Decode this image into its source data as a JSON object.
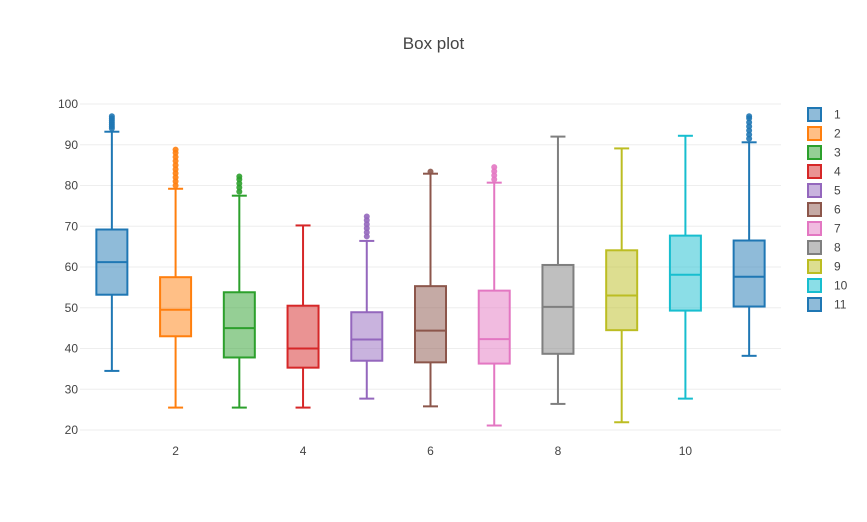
{
  "chart_data": {
    "type": "box",
    "title": "Box plot",
    "xlabel": "",
    "ylabel": "",
    "ylim": [
      20,
      100
    ],
    "y_ticks": [
      20,
      30,
      40,
      50,
      60,
      70,
      80,
      90,
      100
    ],
    "x_ticks": [
      2,
      4,
      6,
      8,
      10
    ],
    "xlim": [
      0.5,
      11.5
    ],
    "grid": "horizontal",
    "legend_position": "right",
    "series": [
      {
        "name": "1",
        "x": 1,
        "color": "#1f77b4",
        "min": 34.5,
        "q1": 53.2,
        "median": 61.2,
        "q3": 69.2,
        "max": 93.2,
        "outliers": [
          94,
          94.5,
          95,
          95.5,
          96,
          96.5,
          97
        ]
      },
      {
        "name": "2",
        "x": 2,
        "color": "#ff7f0e",
        "min": 25.5,
        "q1": 43.0,
        "median": 49.5,
        "q3": 57.5,
        "max": 79.2,
        "outliers": [
          80,
          81,
          82,
          83,
          84,
          85,
          86,
          87,
          88,
          88.8
        ]
      },
      {
        "name": "3",
        "x": 3,
        "color": "#2ca02c",
        "min": 25.5,
        "q1": 37.8,
        "median": 45.0,
        "q3": 53.8,
        "max": 77.5,
        "outliers": [
          78.5,
          79.5,
          80.5,
          81.5,
          82.2
        ]
      },
      {
        "name": "4",
        "x": 4,
        "color": "#d62728",
        "min": 25.5,
        "q1": 35.3,
        "median": 40.0,
        "q3": 50.5,
        "max": 70.2,
        "outliers": []
      },
      {
        "name": "5",
        "x": 5,
        "color": "#9467bd",
        "min": 27.7,
        "q1": 37.0,
        "median": 42.2,
        "q3": 48.9,
        "max": 66.4,
        "outliers": [
          67.5,
          68.5,
          69.5,
          70.5,
          71.5,
          72.4
        ]
      },
      {
        "name": "6",
        "x": 6,
        "color": "#8c564b",
        "min": 25.8,
        "q1": 36.6,
        "median": 44.4,
        "q3": 55.3,
        "max": 82.9,
        "outliers": [
          83.4
        ]
      },
      {
        "name": "7",
        "x": 7,
        "color": "#e377c2",
        "min": 21.1,
        "q1": 36.3,
        "median": 42.3,
        "q3": 54.2,
        "max": 80.7,
        "outliers": [
          81.5,
          82.5,
          83.5,
          84.5
        ]
      },
      {
        "name": "8",
        "x": 8,
        "color": "#7f7f7f",
        "min": 26.4,
        "q1": 38.7,
        "median": 50.2,
        "q3": 60.5,
        "max": 92.0,
        "outliers": []
      },
      {
        "name": "9",
        "x": 9,
        "color": "#bcbd22",
        "min": 21.9,
        "q1": 44.5,
        "median": 53.0,
        "q3": 64.1,
        "max": 89.1,
        "outliers": []
      },
      {
        "name": "10",
        "x": 10,
        "color": "#17becf",
        "min": 27.7,
        "q1": 49.3,
        "median": 58.1,
        "q3": 67.7,
        "max": 92.2,
        "outliers": []
      },
      {
        "name": "11",
        "x": 11,
        "color": "#1f77b4",
        "min": 38.2,
        "q1": 50.3,
        "median": 57.6,
        "q3": 66.5,
        "max": 90.6,
        "outliers": [
          91.5,
          92.5,
          93.5,
          94.5,
          95.5,
          96.5,
          97
        ]
      }
    ]
  }
}
